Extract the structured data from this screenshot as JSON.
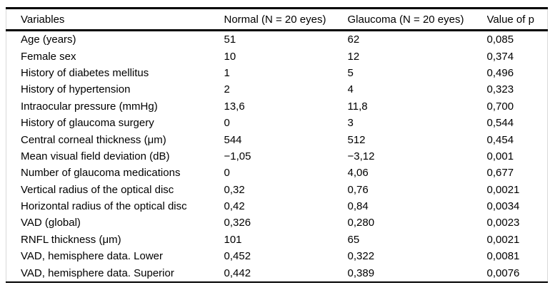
{
  "table": {
    "headers": [
      "Variables",
      "Normal (N = 20 eyes)",
      "Glaucoma (N = 20 eyes)",
      "Value of p"
    ],
    "rows": [
      [
        "Age (years)",
        "51",
        "62",
        "0,085"
      ],
      [
        "Female sex",
        "10",
        "12",
        "0,374"
      ],
      [
        "History of diabetes mellitus",
        "1",
        "5",
        "0,496"
      ],
      [
        "History of hypertension",
        "2",
        "4",
        "0,323"
      ],
      [
        "Intraocular pressure (mmHg)",
        "13,6",
        "11,8",
        "0,700"
      ],
      [
        "History of glaucoma surgery",
        "0",
        "3",
        "0,544"
      ],
      [
        "Central corneal thickness (μm)",
        "544",
        "512",
        "0,454"
      ],
      [
        "Mean visual field deviation (dB)",
        "−1,05",
        "−3,12",
        "0,001"
      ],
      [
        "Number of glaucoma medications",
        "0",
        "4,06",
        "0,677"
      ],
      [
        "Vertical radius of the optical disc",
        "0,32",
        "0,76",
        "0,0021"
      ],
      [
        "Horizontal radius of the optical disc",
        "0,42",
        "0,84",
        "0,0034"
      ],
      [
        "VAD (global)",
        "0,326",
        "0,280",
        "0,0023"
      ],
      [
        "RNFL thickness (μm)",
        "101",
        "65",
        "0,0021"
      ],
      [
        "VAD, hemisphere data. Lower",
        "0,452",
        "0,322",
        "0,0081"
      ],
      [
        "VAD, hemisphere data. Superior",
        "0,442",
        "0,389",
        "0,0076"
      ]
    ]
  },
  "colors": {
    "rule": "#000000",
    "side_border": "#d9d9d9",
    "text": "#000000",
    "background": "#ffffff"
  }
}
